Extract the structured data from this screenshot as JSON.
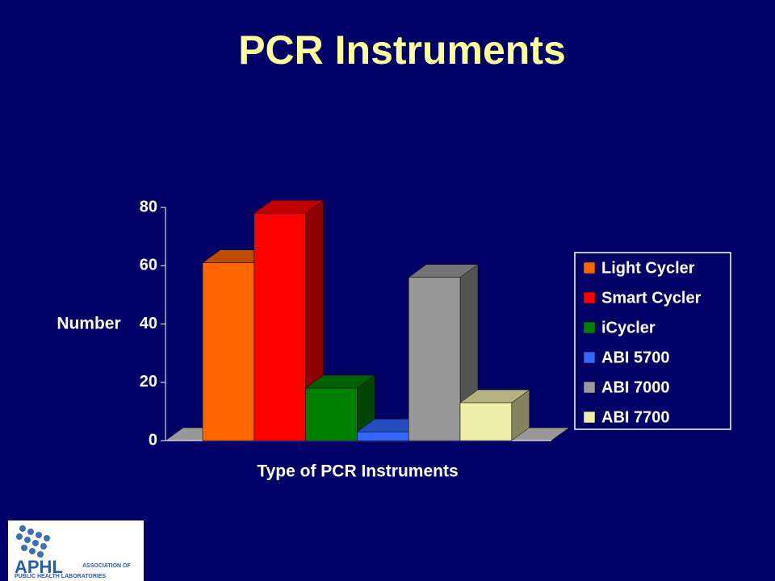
{
  "chart_data": {
    "type": "bar3d",
    "title": "PCR Instruments",
    "xlabel": "Type of PCR Instruments",
    "ylabel": "Number",
    "series": [
      {
        "name": "Light Cycler",
        "color": "#ff6600",
        "values": [
          61
        ]
      },
      {
        "name": "Smart Cycler",
        "color": "#ff0000",
        "values": [
          78
        ]
      },
      {
        "name": "iCycler",
        "color": "#008000",
        "values": [
          18
        ]
      },
      {
        "name": "ABI 5700",
        "color": "#3366ff",
        "values": [
          3
        ]
      },
      {
        "name": "ABI 7000",
        "color": "#999999",
        "values": [
          56
        ]
      },
      {
        "name": "ABI 7700",
        "color": "#eeeeaa",
        "values": [
          13
        ]
      }
    ],
    "ylim": [
      0,
      80
    ],
    "yticks": [
      0,
      20,
      40,
      60,
      80
    ],
    "grid": false,
    "legend": "right"
  },
  "logo": {
    "name": "APHL",
    "tagline_1": "ASSOCIATION OF",
    "tagline_2": "PUBLIC HEALTH LABORATORIES"
  }
}
